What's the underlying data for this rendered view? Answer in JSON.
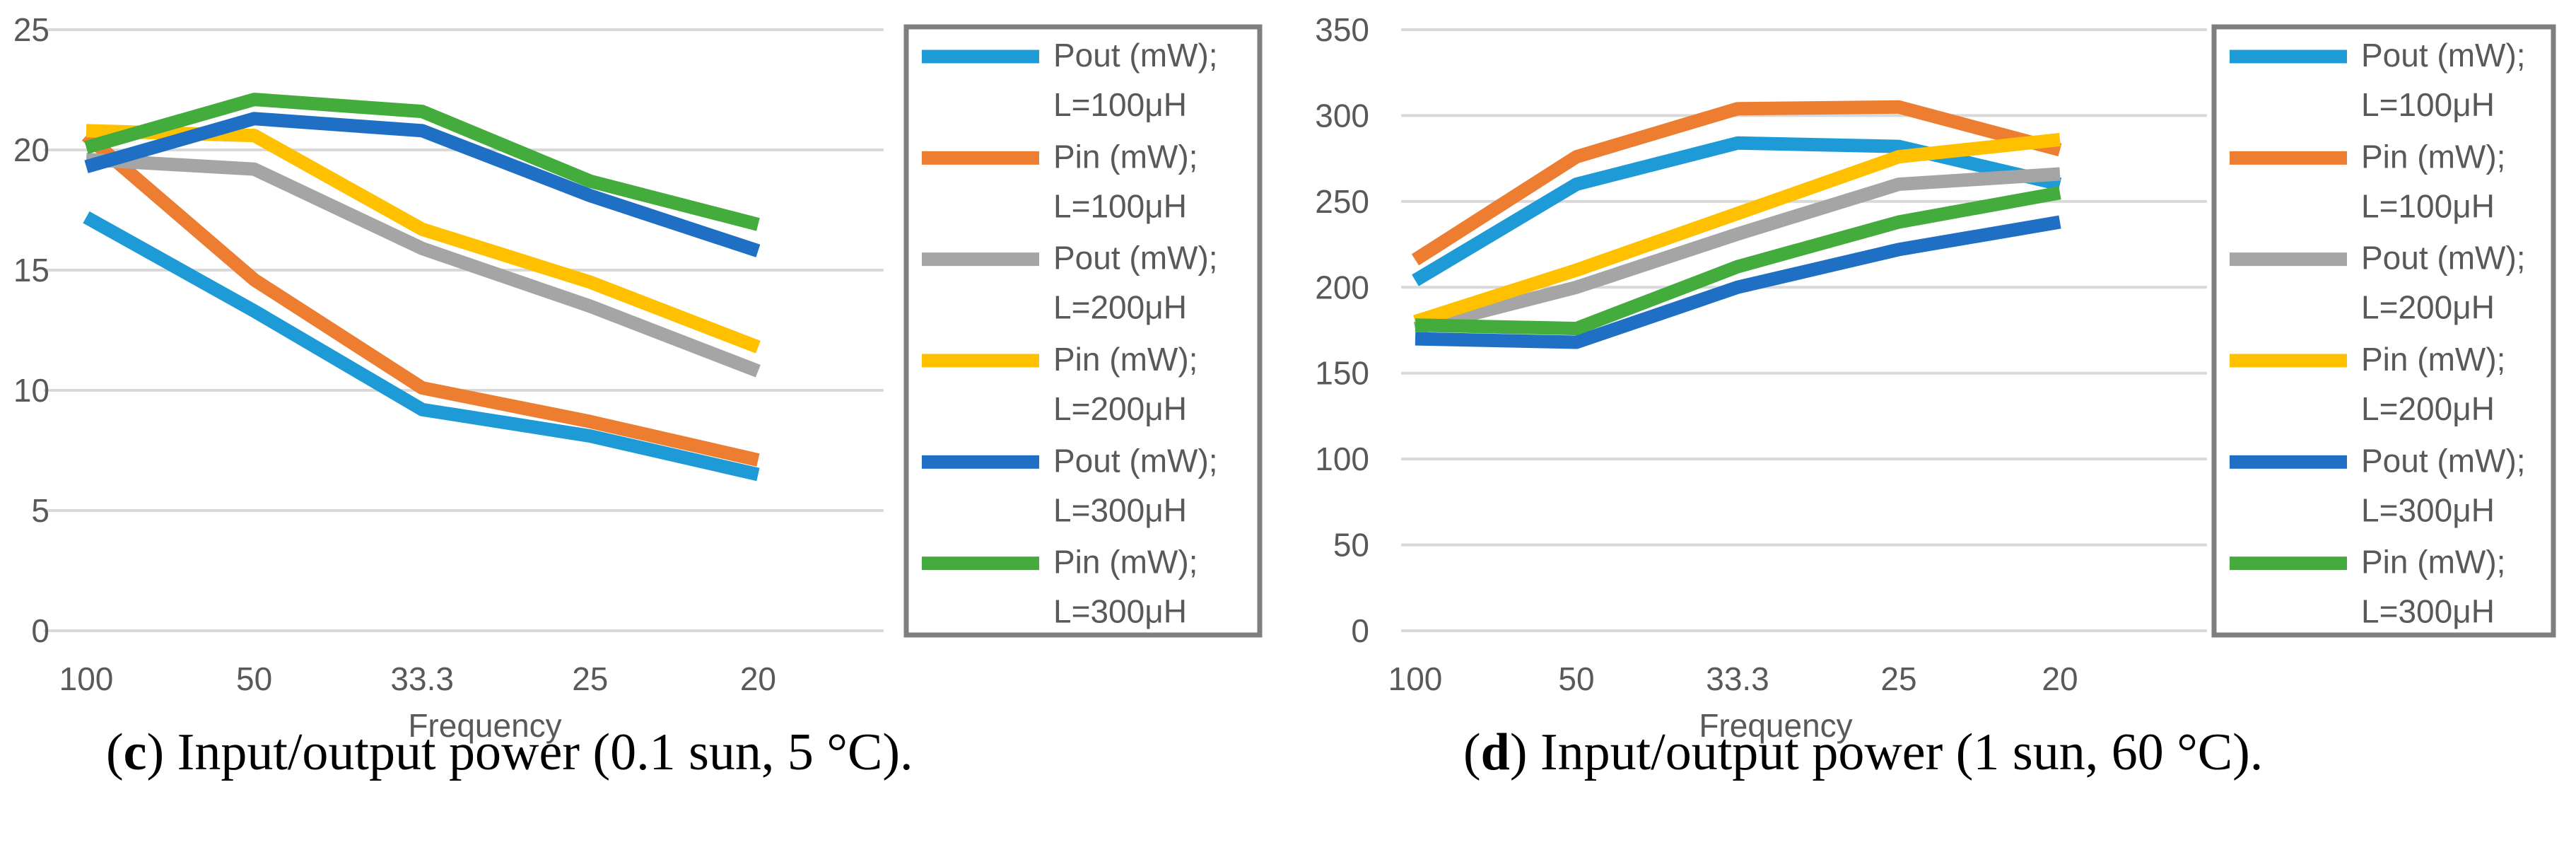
{
  "chart_data": [
    {
      "type": "line",
      "categories": [
        "100",
        "50",
        "33.3",
        "25",
        "20"
      ],
      "xlabel": "Frequency",
      "ylabel": "",
      "ylim": [
        0,
        25
      ],
      "yticks": [
        0,
        5,
        10,
        15,
        20,
        25
      ],
      "grid": true,
      "legend_position": "right",
      "series": [
        {
          "name": "Pout (mW); L=100μH",
          "color": "#1E9BD7",
          "values": [
            17.2,
            13.3,
            9.2,
            8.1,
            6.5
          ]
        },
        {
          "name": "Pin (mW); L=100μH",
          "color": "#ED7D31",
          "values": [
            20.6,
            14.6,
            10.1,
            8.7,
            7.1
          ]
        },
        {
          "name": "Pout (mW); L=200μH",
          "color": "#A5A5A5",
          "values": [
            19.6,
            19.2,
            15.9,
            13.5,
            10.8
          ]
        },
        {
          "name": "Pin (mW); L=200μH",
          "color": "#FFC000",
          "values": [
            20.8,
            20.6,
            16.7,
            14.5,
            11.8
          ]
        },
        {
          "name": "Pout (mW); L=300μH",
          "color": "#1F6FC5",
          "values": [
            19.3,
            21.3,
            20.8,
            18.1,
            15.8
          ]
        },
        {
          "name": "Pin (mW); L=300μH",
          "color": "#43AC3C",
          "values": [
            20.1,
            22.1,
            21.6,
            18.7,
            16.9
          ]
        }
      ],
      "caption_letter": "c",
      "caption_text": " Input/output power (0.1 sun, 5 °C)."
    },
    {
      "type": "line",
      "categories": [
        "100",
        "50",
        "33.3",
        "25",
        "20"
      ],
      "xlabel": "Frequency",
      "ylabel": "",
      "ylim": [
        0,
        350
      ],
      "yticks": [
        0,
        50,
        100,
        150,
        200,
        250,
        300,
        350
      ],
      "grid": true,
      "legend_position": "right",
      "series": [
        {
          "name": "Pout (mW); L=100μH",
          "color": "#1E9BD7",
          "values": [
            204,
            260,
            284,
            282,
            260
          ]
        },
        {
          "name": "Pin (mW); L=100μH",
          "color": "#ED7D31",
          "values": [
            216,
            276,
            304,
            305,
            280
          ]
        },
        {
          "name": "Pout (mW); L=200μH",
          "color": "#A5A5A5",
          "values": [
            176,
            200,
            231,
            260,
            266
          ]
        },
        {
          "name": "Pin (mW); L=200μH",
          "color": "#FFC000",
          "values": [
            180,
            210,
            243,
            276,
            286
          ]
        },
        {
          "name": "Pout (mW); L=300μH",
          "color": "#1F6FC5",
          "values": [
            170,
            168,
            200,
            222,
            238
          ]
        },
        {
          "name": "Pin (mW); L=300μH",
          "color": "#43AC3C",
          "values": [
            178,
            176,
            212,
            238,
            255
          ]
        }
      ],
      "caption_letter": "d",
      "caption_text": " Input/output power (1 sun, 60 °C)."
    }
  ]
}
